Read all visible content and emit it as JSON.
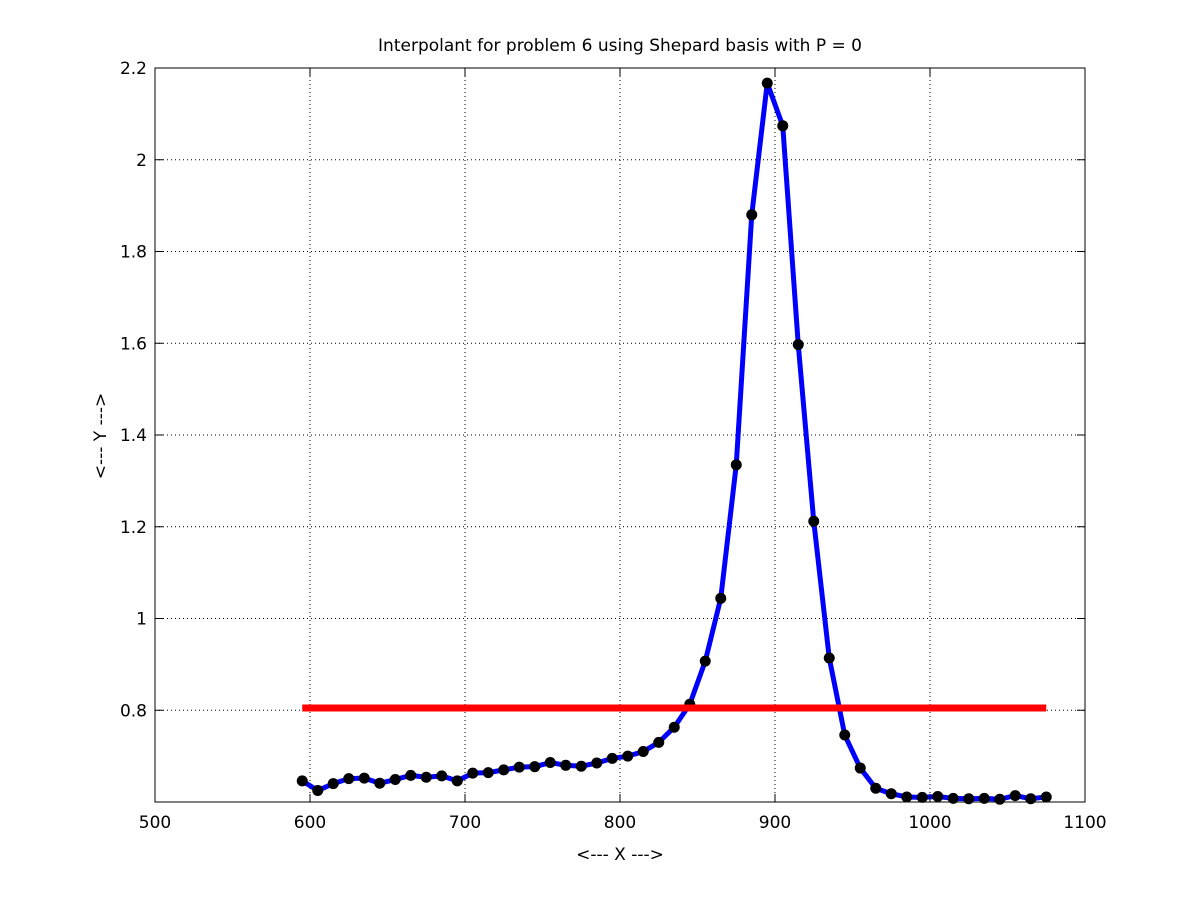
{
  "chart_data": {
    "type": "line",
    "title": "Interpolant for problem 6 using Shepard basis with P = 0",
    "xlabel": "<--- X --->",
    "ylabel": "<--- Y --->",
    "xlim": [
      500,
      1100
    ],
    "ylim": [
      0.6,
      2.2
    ],
    "grid": true,
    "x_ticks": [
      500,
      600,
      700,
      800,
      900,
      1000,
      1100
    ],
    "x_tick_labels": [
      "500",
      "600",
      "700",
      "800",
      "900",
      "1000",
      "1100"
    ],
    "y_ticks": [
      0.8,
      1.0,
      1.2,
      1.4,
      1.6,
      1.8,
      2.0,
      2.2
    ],
    "y_tick_labels": [
      "0.8",
      "1",
      "1.2",
      "1.4",
      "1.6",
      "1.8",
      "2",
      "2.2"
    ],
    "series": [
      {
        "color": "#0000ff",
        "marker": "filled-circle",
        "marker_color": "#000000",
        "x": [
          595,
          605,
          615,
          625,
          635,
          645,
          655,
          665,
          675,
          685,
          695,
          705,
          715,
          725,
          735,
          745,
          755,
          765,
          775,
          785,
          795,
          805,
          815,
          825,
          835,
          845,
          855,
          865,
          875,
          885,
          895,
          905,
          915,
          925,
          935,
          945,
          955,
          965,
          975,
          985,
          995,
          1005,
          1015,
          1025,
          1035,
          1045,
          1055,
          1065,
          1075
        ],
        "y": [
          0.646,
          0.625,
          0.64,
          0.651,
          0.652,
          0.641,
          0.649,
          0.658,
          0.654,
          0.657,
          0.646,
          0.663,
          0.664,
          0.67,
          0.676,
          0.677,
          0.686,
          0.68,
          0.678,
          0.685,
          0.695,
          0.7,
          0.71,
          0.73,
          0.763,
          0.813,
          0.907,
          1.044,
          1.335,
          1.88,
          2.167,
          2.074,
          1.597,
          1.212,
          0.914,
          0.746,
          0.674,
          0.63,
          0.618,
          0.611,
          0.61,
          0.612,
          0.608,
          0.607,
          0.608,
          0.606,
          0.614,
          0.607,
          0.611
        ]
      },
      {
        "color": "#ff0000",
        "x": [
          595,
          1075
        ],
        "y": [
          0.805,
          0.805
        ]
      }
    ]
  }
}
